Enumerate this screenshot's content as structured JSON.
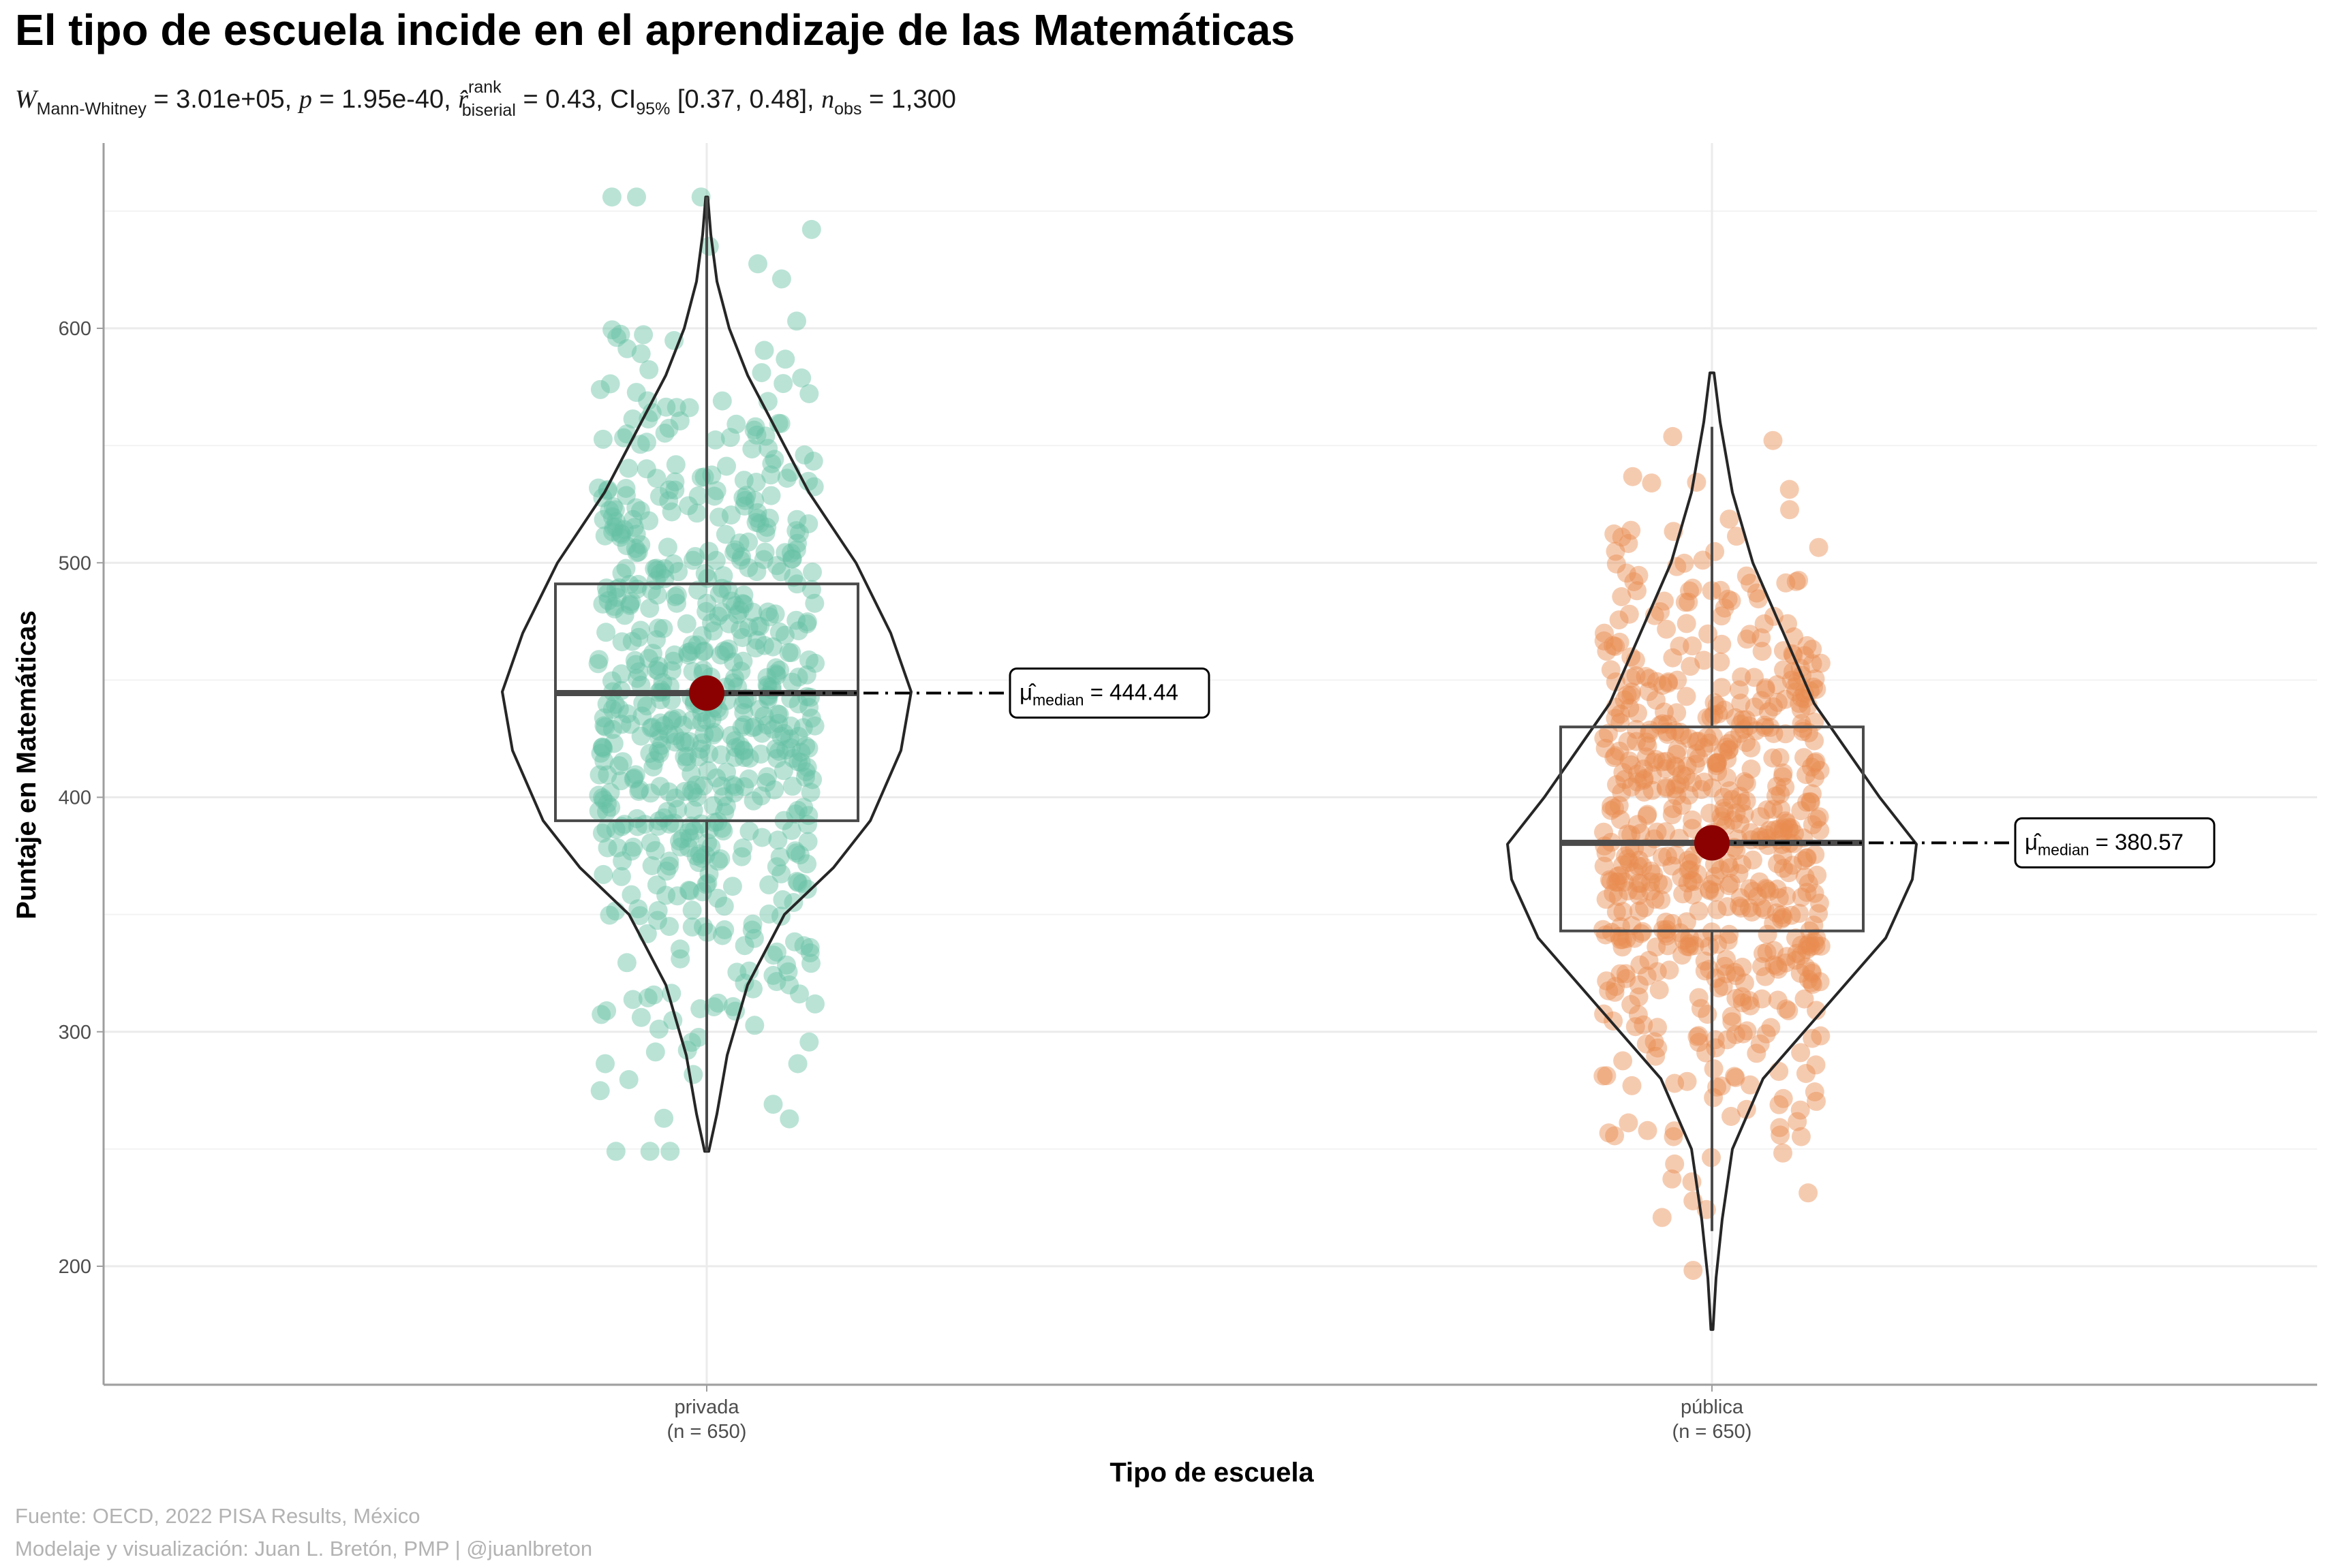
{
  "header": {
    "title": "El tipo de escuela incide en el aprendizaje de las Matemáticas",
    "subtitle": {
      "w_symbol": "W",
      "w_sub": "Mann-Whitney",
      "w_value": " = 3.01e+05, ",
      "p_symbol": "p",
      "p_value": " = 1.95e-40, ",
      "r_symbol": "r̂",
      "r_sup": "rank",
      "r_sub": "biserial",
      "r_value": " = 0.43, CI",
      "ci_sub": "95%",
      "ci_value": " [0.37, 0.48], ",
      "n_symbol": "n",
      "n_sub": "obs",
      "n_value": " = 1,300"
    }
  },
  "caption": {
    "line1": "Fuente: OECD, 2022 PISA Results, México",
    "line2": "Modelaje y visualización: Juan L. Bretón, PMP | @juanlbreton"
  },
  "chart_data": {
    "type": "scatter",
    "subtype": "violin + box + jittered points",
    "xlabel": "Tipo de escuela",
    "ylabel": "Puntaje en Matemáticas",
    "ylim": [
      150,
      680
    ],
    "yticks": [
      200,
      300,
      400,
      500,
      600
    ],
    "grid": true,
    "groups": [
      {
        "name": "privada",
        "n_label": "(n = 650)",
        "color": "#66c2a5",
        "n": 650,
        "min": 249,
        "q1": 390,
        "median": 444.44,
        "q3": 491,
        "whisker_low": 249,
        "whisker_high": 656,
        "max": 656,
        "median_label_symbol": "μ̂",
        "median_label_sub": "median",
        "median_label_value": " = 444.44",
        "violin_profile": [
          [
            249,
            0.01
          ],
          [
            265,
            0.05
          ],
          [
            290,
            0.1
          ],
          [
            320,
            0.2
          ],
          [
            350,
            0.38
          ],
          [
            370,
            0.62
          ],
          [
            390,
            0.8
          ],
          [
            420,
            0.95
          ],
          [
            445,
            1.0
          ],
          [
            470,
            0.9
          ],
          [
            500,
            0.73
          ],
          [
            530,
            0.5
          ],
          [
            560,
            0.32
          ],
          [
            580,
            0.2
          ],
          [
            600,
            0.11
          ],
          [
            620,
            0.05
          ],
          [
            640,
            0.02
          ],
          [
            656,
            0.005
          ]
        ]
      },
      {
        "name": "pública",
        "n_label": "(n = 650)",
        "color": "#e98b4f",
        "n": 650,
        "min": 173,
        "q1": 343,
        "median": 380.57,
        "q3": 430,
        "whisker_low": 215,
        "whisker_high": 558,
        "max": 581,
        "median_label_symbol": "μ̂",
        "median_label_sub": "median",
        "median_label_value": " = 380.57",
        "violin_profile": [
          [
            173,
            0.005
          ],
          [
            195,
            0.02
          ],
          [
            220,
            0.05
          ],
          [
            250,
            0.1
          ],
          [
            280,
            0.25
          ],
          [
            310,
            0.55
          ],
          [
            340,
            0.85
          ],
          [
            365,
            0.98
          ],
          [
            380,
            1.0
          ],
          [
            400,
            0.82
          ],
          [
            420,
            0.66
          ],
          [
            440,
            0.5
          ],
          [
            470,
            0.35
          ],
          [
            500,
            0.2
          ],
          [
            530,
            0.1
          ],
          [
            560,
            0.04
          ],
          [
            581,
            0.01
          ]
        ]
      }
    ],
    "median_point_color": "#8b0000"
  }
}
